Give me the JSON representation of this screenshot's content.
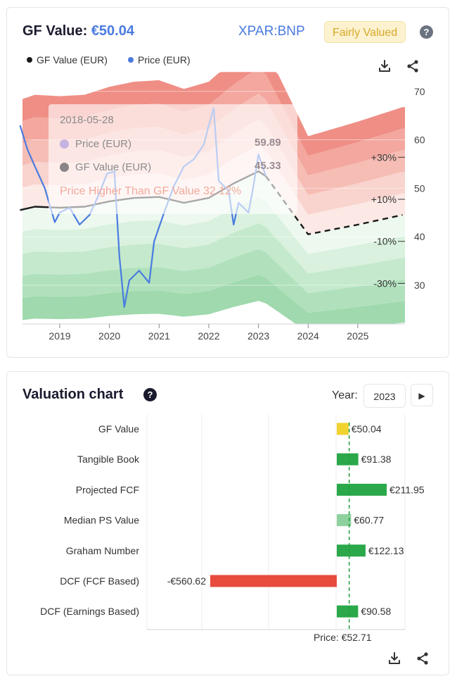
{
  "gf_card": {
    "title_prefix": "GF Value: ",
    "title_value": "€50.04",
    "ticker": "XPAR:BNP",
    "status_badge": "Fairly Valued",
    "help": "?",
    "legend": [
      {
        "label": "GF Value (EUR)",
        "color": "#1a1a1a"
      },
      {
        "label": "Price (EUR)",
        "color": "#4a7be0"
      }
    ],
    "tooltip": {
      "date": "2018-05-28",
      "rows": [
        {
          "label": "Price (EUR)",
          "value": "59.89"
        },
        {
          "label": "GF Value (EUR)",
          "value": "45.33"
        }
      ],
      "note": "Price Higher Than GF Value 32.12%"
    }
  },
  "chart_data": [
    {
      "type": "line",
      "x_tick_labels": [
        "2019",
        "2020",
        "2021",
        "2022",
        "2023",
        "2024",
        "2025"
      ],
      "y_tick_labels": [
        "70",
        "60",
        "50",
        "40",
        "30"
      ],
      "ylim": [
        22,
        72
      ],
      "band_labels": [
        "+30%",
        "+10%",
        "-10%",
        "-30%"
      ],
      "series": [
        {
          "name": "GF Value (EUR)",
          "color": "#1a1a1a",
          "x": [
            2018.2,
            2018.5,
            2019.0,
            2019.5,
            2020.0,
            2020.5,
            2021.0,
            2021.5,
            2022.0,
            2022.5,
            2023.0,
            2023.15
          ],
          "values": [
            45.5,
            46.2,
            46.0,
            46.2,
            47.3,
            48.0,
            48.2,
            47.0,
            48.0,
            51.0,
            53.5,
            52.5
          ]
        },
        {
          "name": "GF Value projection",
          "color": "#1a1a1a",
          "dashed": true,
          "x": [
            2023.15,
            2024.0,
            2025.0,
            2025.9
          ],
          "values": [
            52.5,
            40.5,
            42.5,
            44.5
          ]
        },
        {
          "name": "Price (EUR)",
          "color": "#4a7be0",
          "x": [
            2018.2,
            2018.35,
            2018.5,
            2018.7,
            2018.9,
            2019.0,
            2019.2,
            2019.4,
            2019.6,
            2019.8,
            2019.95,
            2020.1,
            2020.2,
            2020.3,
            2020.4,
            2020.6,
            2020.8,
            2020.9,
            2021.1,
            2021.3,
            2021.5,
            2021.7,
            2021.9,
            2022.0,
            2022.1,
            2022.2,
            2022.4,
            2022.5,
            2022.6,
            2022.8,
            2022.9,
            2023.0,
            2023.15
          ],
          "values": [
            63.0,
            58.0,
            54.5,
            50.0,
            43.0,
            45.0,
            46.0,
            42.5,
            44.5,
            49.0,
            53.0,
            53.5,
            36.0,
            25.5,
            31.0,
            33.0,
            30.5,
            39.0,
            45.0,
            50.5,
            54.5,
            56.0,
            59.0,
            63.0,
            66.5,
            51.5,
            49.5,
            42.5,
            47.0,
            45.0,
            50.5,
            57.0,
            52.5
          ]
        }
      ]
    },
    {
      "type": "bar",
      "title": "Valuation chart",
      "year_label": "Year:",
      "year": "2023",
      "categories": [
        "GF Value",
        "Tangible Book",
        "Projected FCF",
        "Median PS Value",
        "Graham Number",
        "DCF (FCF Based)",
        "DCF (Earnings Based)"
      ],
      "values": [
        50.04,
        91.38,
        211.95,
        60.77,
        122.13,
        -560.62,
        90.58
      ],
      "value_labels": [
        "€50.04",
        "€91.38",
        "€211.95",
        "€60.77",
        "€122.13",
        "-€560.62",
        "€90.58"
      ],
      "colors": [
        "#f2d22e",
        "#2aa84a",
        "#2aa84a",
        "#8fd19e",
        "#2aa84a",
        "#e84b3c",
        "#2aa84a"
      ],
      "price_line": 52.71,
      "price_label": "Price: €52.71",
      "grid": true
    }
  ]
}
